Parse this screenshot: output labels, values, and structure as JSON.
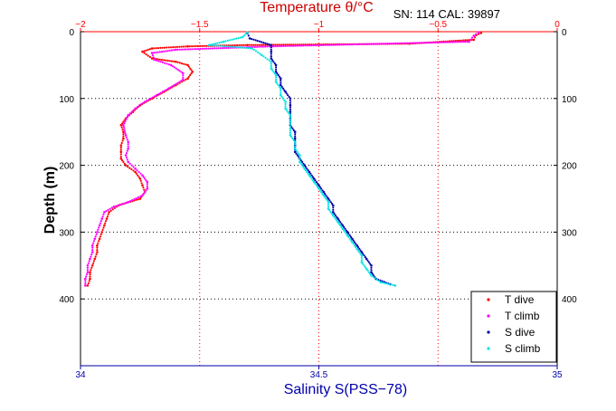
{
  "chart_data": {
    "type": "scatter",
    "top_axis": {
      "label": "Temperature θ/°C",
      "range": [
        -2,
        0
      ],
      "ticks": [
        -2,
        -1.5,
        -1,
        -0.5,
        0
      ],
      "tick_labels": [
        "−2",
        "−1.5",
        "−1",
        "−0.5",
        "0"
      ],
      "color": "#ff0000"
    },
    "bottom_axis": {
      "label": "Salinity S(PSS−78)",
      "range": [
        34,
        35
      ],
      "ticks": [
        34,
        34.5,
        35
      ],
      "tick_labels": [
        "34",
        "34.5",
        "35"
      ],
      "color": "#0000aa"
    },
    "y_axis": {
      "label": "Depth (m)",
      "range": [
        0,
        500
      ],
      "reversed": true,
      "ticks": [
        0,
        100,
        200,
        300,
        400
      ],
      "tick_labels": [
        "0",
        "100",
        "200",
        "300",
        "400"
      ]
    },
    "annotation": "SN: 114  CAL: 39897",
    "grid": true,
    "legend_position": "bottom-right",
    "series": [
      {
        "name": "T dive",
        "axis": "top",
        "color": "#ff0000",
        "points": [
          [
            -0.32,
            2
          ],
          [
            -0.34,
            5
          ],
          [
            -0.35,
            12
          ],
          [
            -0.62,
            18
          ],
          [
            -1.3,
            20
          ],
          [
            -1.55,
            22
          ],
          [
            -1.7,
            25
          ],
          [
            -1.74,
            30
          ],
          [
            -1.7,
            40
          ],
          [
            -1.6,
            45
          ],
          [
            -1.55,
            50
          ],
          [
            -1.53,
            60
          ],
          [
            -1.55,
            70
          ],
          [
            -1.6,
            80
          ],
          [
            -1.65,
            90
          ],
          [
            -1.7,
            100
          ],
          [
            -1.75,
            110
          ],
          [
            -1.78,
            120
          ],
          [
            -1.81,
            130
          ],
          [
            -1.83,
            140
          ],
          [
            -1.82,
            150
          ],
          [
            -1.82,
            160
          ],
          [
            -1.83,
            170
          ],
          [
            -1.83,
            180
          ],
          [
            -1.83,
            190
          ],
          [
            -1.81,
            200
          ],
          [
            -1.77,
            210
          ],
          [
            -1.75,
            220
          ],
          [
            -1.74,
            230
          ],
          [
            -1.73,
            240
          ],
          [
            -1.75,
            250
          ],
          [
            -1.84,
            260
          ],
          [
            -1.88,
            270
          ],
          [
            -1.89,
            280
          ],
          [
            -1.9,
            290
          ],
          [
            -1.91,
            300
          ],
          [
            -1.92,
            310
          ],
          [
            -1.93,
            320
          ],
          [
            -1.93,
            330
          ],
          [
            -1.94,
            340
          ],
          [
            -1.95,
            350
          ],
          [
            -1.96,
            360
          ],
          [
            -1.96,
            370
          ],
          [
            -1.97,
            380
          ]
        ]
      },
      {
        "name": "T climb",
        "axis": "top",
        "color": "#ff00ff",
        "points": [
          [
            -0.33,
            1
          ],
          [
            -0.35,
            6
          ],
          [
            -0.37,
            15
          ],
          [
            -1.2,
            22
          ],
          [
            -1.6,
            27
          ],
          [
            -1.7,
            32
          ],
          [
            -1.69,
            42
          ],
          [
            -1.62,
            50
          ],
          [
            -1.57,
            62
          ],
          [
            -1.57,
            72
          ],
          [
            -1.63,
            85
          ],
          [
            -1.68,
            95
          ],
          [
            -1.73,
            105
          ],
          [
            -1.77,
            115
          ],
          [
            -1.8,
            125
          ],
          [
            -1.82,
            140
          ],
          [
            -1.81,
            155
          ],
          [
            -1.8,
            165
          ],
          [
            -1.8,
            175
          ],
          [
            -1.81,
            185
          ],
          [
            -1.8,
            195
          ],
          [
            -1.77,
            205
          ],
          [
            -1.74,
            215
          ],
          [
            -1.72,
            225
          ],
          [
            -1.72,
            235
          ],
          [
            -1.74,
            245
          ],
          [
            -1.8,
            255
          ],
          [
            -1.86,
            262
          ],
          [
            -1.9,
            270
          ],
          [
            -1.91,
            280
          ],
          [
            -1.92,
            290
          ],
          [
            -1.93,
            300
          ],
          [
            -1.94,
            310
          ],
          [
            -1.95,
            320
          ],
          [
            -1.95,
            330
          ],
          [
            -1.96,
            340
          ],
          [
            -1.97,
            350
          ],
          [
            -1.97,
            360
          ],
          [
            -1.98,
            370
          ],
          [
            -1.98,
            380
          ]
        ]
      },
      {
        "name": "S dive",
        "axis": "bottom",
        "color": "#0000aa",
        "points": [
          [
            34.35,
            2
          ],
          [
            34.355,
            10
          ],
          [
            34.4,
            20
          ],
          [
            34.4,
            30
          ],
          [
            34.4,
            40
          ],
          [
            34.41,
            50
          ],
          [
            34.41,
            60
          ],
          [
            34.42,
            70
          ],
          [
            34.42,
            80
          ],
          [
            34.43,
            90
          ],
          [
            34.44,
            100
          ],
          [
            34.44,
            110
          ],
          [
            34.44,
            120
          ],
          [
            34.44,
            130
          ],
          [
            34.44,
            140
          ],
          [
            34.45,
            150
          ],
          [
            34.45,
            160
          ],
          [
            34.45,
            170
          ],
          [
            34.45,
            180
          ],
          [
            34.46,
            190
          ],
          [
            34.47,
            200
          ],
          [
            34.48,
            210
          ],
          [
            34.49,
            220
          ],
          [
            34.5,
            230
          ],
          [
            34.51,
            240
          ],
          [
            34.52,
            250
          ],
          [
            34.53,
            260
          ],
          [
            34.53,
            270
          ],
          [
            34.54,
            280
          ],
          [
            34.55,
            290
          ],
          [
            34.56,
            300
          ],
          [
            34.57,
            310
          ],
          [
            34.58,
            320
          ],
          [
            34.59,
            330
          ],
          [
            34.6,
            340
          ],
          [
            34.61,
            350
          ],
          [
            34.61,
            360
          ],
          [
            34.62,
            370
          ],
          [
            34.65,
            378
          ]
        ]
      },
      {
        "name": "S climb",
        "axis": "bottom",
        "color": "#00e5e5",
        "points": [
          [
            34.35,
            1
          ],
          [
            34.34,
            8
          ],
          [
            34.3,
            15
          ],
          [
            34.27,
            20
          ],
          [
            34.36,
            25
          ],
          [
            34.38,
            35
          ],
          [
            34.4,
            45
          ],
          [
            34.4,
            55
          ],
          [
            34.41,
            65
          ],
          [
            34.41,
            75
          ],
          [
            34.42,
            85
          ],
          [
            34.42,
            95
          ],
          [
            34.43,
            105
          ],
          [
            34.43,
            115
          ],
          [
            34.44,
            125
          ],
          [
            34.44,
            135
          ],
          [
            34.44,
            145
          ],
          [
            34.44,
            155
          ],
          [
            34.45,
            165
          ],
          [
            34.45,
            175
          ],
          [
            34.46,
            185
          ],
          [
            34.46,
            195
          ],
          [
            34.47,
            205
          ],
          [
            34.48,
            215
          ],
          [
            34.49,
            225
          ],
          [
            34.5,
            235
          ],
          [
            34.51,
            245
          ],
          [
            34.52,
            255
          ],
          [
            34.52,
            265
          ],
          [
            34.53,
            275
          ],
          [
            34.54,
            285
          ],
          [
            34.55,
            295
          ],
          [
            34.56,
            305
          ],
          [
            34.57,
            315
          ],
          [
            34.58,
            325
          ],
          [
            34.59,
            335
          ],
          [
            34.59,
            345
          ],
          [
            34.6,
            355
          ],
          [
            34.61,
            365
          ],
          [
            34.63,
            375
          ],
          [
            34.66,
            380
          ]
        ]
      }
    ]
  }
}
